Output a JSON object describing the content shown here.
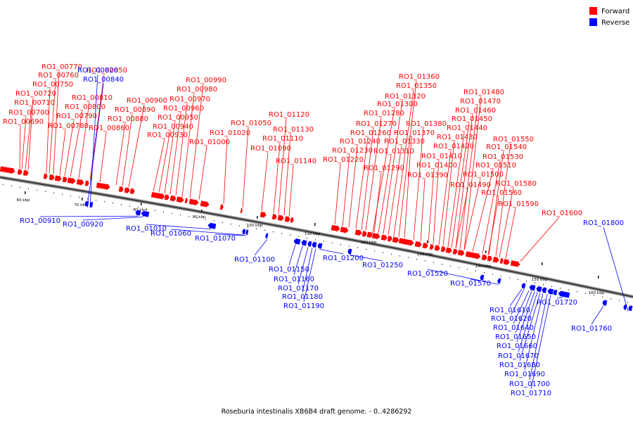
{
  "legend": [
    {
      "label": "Forward",
      "color": "#ff0000"
    },
    {
      "label": "Reverse",
      "color": "#0000ff"
    }
  ],
  "caption": "Roseburia intestinalis XB6B4 draft genome. - 0..4286292",
  "tick_labels": [
    "60 kbp",
    "70 kbp",
    "80 kbp",
    "90 kbp",
    "100 kbp",
    "110 kbp",
    "120 kbp",
    "130 kbp",
    "140 kbp",
    "150 kbp",
    "160 kbp"
  ],
  "forward_genes": [
    "RO1_00690",
    "RO1_00700",
    "RO1_00710",
    "RO1_00720",
    "RO1_00750",
    "RO1_00760",
    "RO1_00770",
    "RO1_00780",
    "RO1_00790",
    "RO1_00800",
    "RO1_00810",
    "RO1_00850",
    "RO1_00860",
    "RO1_00880",
    "RO1_00890",
    "RO1_00900",
    "RO1_00930",
    "RO1_00940",
    "RO1_00950",
    "RO1_00960",
    "RO1_00970",
    "RO1_00980",
    "RO1_00990",
    "RO1_01000",
    "RO1_01020",
    "RO1_01050",
    "RO1_01090",
    "RO1_01110",
    "RO1_01120",
    "RO1_01130",
    "RO1_01140",
    "RO1_01220",
    "RO1_01230",
    "RO1_01240",
    "RO1_01260",
    "RO1_01270",
    "RO1_01280",
    "RO1_01290",
    "RO1_01300",
    "RO1_01310",
    "RO1_01320",
    "RO1_01330",
    "RO1_01350",
    "RO1_01360",
    "RO1_01370",
    "RO1_01380",
    "RO1_01390",
    "RO1_01400",
    "RO1_01410",
    "RO1_01420",
    "RO1_01430",
    "RO1_01440",
    "RO1_01450",
    "RO1_01460",
    "RO1_01470",
    "RO1_01480",
    "RO1_01490",
    "RO1_01500",
    "RO1_01510",
    "RO1_01530",
    "RO1_01540",
    "RO1_01550",
    "RO1_01560",
    "RO1_01580",
    "RO1_01590",
    "RO1_01600"
  ],
  "reverse_genes": [
    "RO1_00820",
    "RO1_00840",
    "RO1_00910",
    "RO1_00920",
    "RO1_01010",
    "RO1_01060",
    "RO1_01070",
    "RO1_01100",
    "RO1_01150",
    "RO1_01160",
    "RO1_01170",
    "RO1_01180",
    "RO1_01190",
    "RO1_01200",
    "RO1_01250",
    "RO1_01520",
    "RO1_01570",
    "RO1_01610",
    "RO1_01620",
    "RO1_01640",
    "RO1_01650",
    "RO1_01660",
    "RO1_01670",
    "RO1_01680",
    "RO1_01690",
    "RO1_01700",
    "RO1_01710",
    "RO1_01720",
    "RO1_01760",
    "RO1_01800"
  ]
}
